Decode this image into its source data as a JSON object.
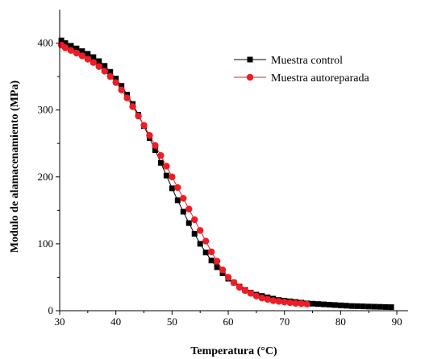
{
  "chart_data": {
    "type": "line",
    "title": "",
    "xlabel": "Temperatura (°C)",
    "ylabel": "Modulo de alamacenamiento (MPa)",
    "xlim": [
      30,
      92
    ],
    "ylim": [
      0,
      450
    ],
    "xticks": [
      30,
      40,
      50,
      60,
      70,
      80,
      90
    ],
    "yticks": [
      0,
      100,
      200,
      300,
      400
    ],
    "xtick_labels": [
      "30",
      "40",
      "50",
      "60",
      "70",
      "80",
      "90"
    ],
    "ytick_labels": [
      "0",
      "100",
      "200",
      "300",
      "400"
    ],
    "grid": false,
    "legend_position": "top-right",
    "series": [
      {
        "name": "Muestra control",
        "color": "#000000",
        "marker": "square",
        "x": [
          30.3,
          31,
          32,
          33,
          34,
          35,
          36,
          37,
          38,
          39,
          40,
          41,
          42,
          43,
          44,
          45,
          46,
          47,
          48,
          49,
          50,
          51,
          52,
          53,
          54,
          55,
          56,
          57,
          58,
          59,
          60,
          61,
          62,
          63,
          64,
          65,
          66,
          67,
          68,
          69,
          70,
          71,
          72,
          73,
          74,
          75,
          76,
          77,
          78,
          79,
          80,
          81,
          82,
          83,
          84,
          85,
          86,
          87,
          88,
          89
        ],
        "y": [
          404,
          400,
          396,
          392,
          388,
          384,
          379,
          373,
          366,
          357,
          347,
          336,
          323,
          309,
          293,
          276,
          258,
          240,
          221,
          202,
          183,
          165,
          148,
          131,
          115,
          100,
          87,
          75,
          65,
          56,
          48,
          42,
          36,
          31,
          27,
          24,
          22,
          20,
          18,
          16,
          15,
          14,
          13,
          12,
          11,
          10.5,
          10,
          9.5,
          9,
          8.5,
          8,
          7.5,
          7,
          6.8,
          6.5,
          6.2,
          6,
          5.8,
          5.5,
          5.3
        ]
      },
      {
        "name": "Muestra autoreparada",
        "color": "#ee1c25",
        "marker": "circle",
        "x": [
          30.3,
          31,
          32,
          33,
          34,
          35,
          36,
          37,
          38,
          39,
          40,
          41,
          42,
          43,
          44,
          45,
          46,
          47,
          48,
          49,
          50,
          51,
          52,
          53,
          54,
          55,
          56,
          57,
          58,
          59,
          60,
          61,
          62,
          63,
          64,
          65,
          66,
          67,
          68,
          69,
          70,
          71,
          72,
          73,
          74
        ],
        "y": [
          397,
          393,
          389,
          385,
          381,
          376,
          371,
          365,
          358,
          350,
          341,
          330,
          318,
          305,
          291,
          277,
          262,
          247,
          232,
          216,
          200,
          184,
          168,
          152,
          136,
          120,
          104,
          88,
          74,
          61,
          50,
          42,
          35,
          30,
          26,
          22,
          19,
          17,
          15,
          14,
          13,
          12,
          11,
          10.5,
          10
        ]
      }
    ]
  }
}
